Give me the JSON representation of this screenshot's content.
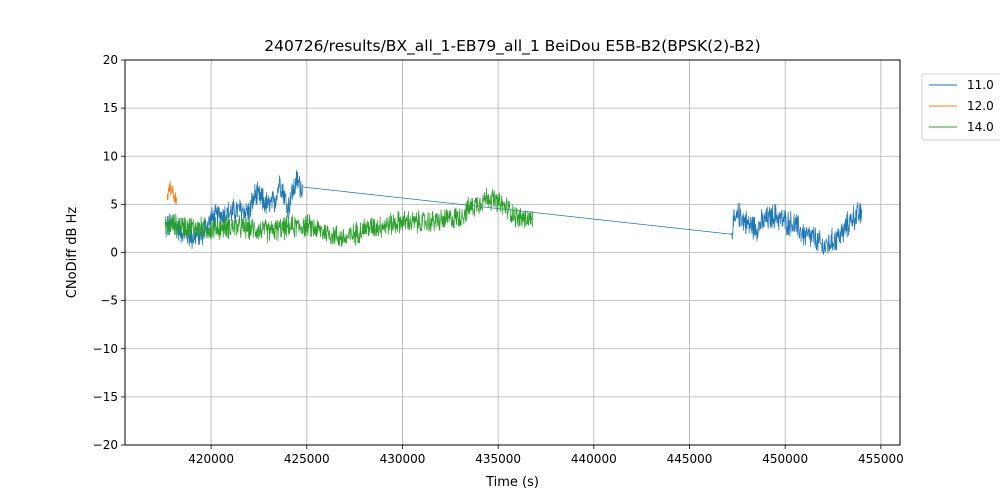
{
  "chart_data": {
    "type": "line",
    "title": "240726/results/BX_all_1-EB79_all_1 BeiDou E5B-B2(BPSK(2)-B2)",
    "xlabel": "Time (s)",
    "ylabel": "CNoDiff dB Hz",
    "xlim": [
      415500,
      456000
    ],
    "ylim": [
      -20,
      20
    ],
    "xticks": [
      420000,
      425000,
      430000,
      435000,
      440000,
      445000,
      450000,
      455000
    ],
    "yticks": [
      -20,
      -15,
      -10,
      -5,
      0,
      5,
      10,
      15,
      20
    ],
    "xtick_labels": [
      "420000",
      "425000",
      "430000",
      "435000",
      "440000",
      "445000",
      "450000",
      "455000"
    ],
    "ytick_labels": [
      "−20",
      "−15",
      "−10",
      "−5",
      "0",
      "5",
      "10",
      "15",
      "20"
    ],
    "grid": true,
    "legend_position": "outside-top-right",
    "series": [
      {
        "name": "11.0",
        "color": "#1f77b4",
        "segments": [
          {
            "x": [
              417600,
              418000,
              418500,
              419000,
              419500,
              420000,
              420500,
              421000,
              421500,
              422000,
              422300,
              422600,
              423000,
              423300,
              423600,
              423800,
              424000,
              424200,
              424500,
              424800
            ],
            "y": [
              2.5,
              3.0,
              2.2,
              1.6,
              1.9,
              3.4,
              3.9,
              4.1,
              4.4,
              4.2,
              6.0,
              5.6,
              4.8,
              5.2,
              7.5,
              6.2,
              4.5,
              6.0,
              7.5,
              6.5
            ],
            "amplitude": 1.6
          },
          {
            "x": [
              424800,
              447200
            ],
            "y": [
              6.8,
              1.9
            ],
            "amplitude": 0
          },
          {
            "x": [
              447200,
              447600,
              448000,
              448500,
              449000,
              449500,
              450000,
              450500,
              451000,
              451500,
              452000,
              452500,
              453000,
              453500,
              454000
            ],
            "y": [
              2.5,
              4.0,
              3.0,
              2.6,
              3.4,
              3.8,
              3.2,
              2.9,
              1.8,
              1.5,
              0.5,
              1.2,
              2.0,
              3.6,
              4.0
            ],
            "amplitude": 1.6
          }
        ]
      },
      {
        "name": "12.0",
        "color": "#ff7f0e",
        "segments": [
          {
            "x": [
              417700,
              417850,
              418000,
              418100,
              418200
            ],
            "y": [
              5.8,
              6.8,
              6.5,
              5.8,
              5.0
            ],
            "amplitude": 0.9
          }
        ]
      },
      {
        "name": "14.0",
        "color": "#2ca02c",
        "segments": [
          {
            "x": [
              417600,
              418000,
              419000,
              420000,
              421000,
              422000,
              423000,
              424000,
              425000,
              426000,
              427000,
              428000,
              429000,
              430000,
              431000,
              432000,
              433000,
              433500,
              434000,
              434500,
              435000,
              435500,
              436000,
              436800
            ],
            "y": [
              2.6,
              2.9,
              2.6,
              2.4,
              2.7,
              2.5,
              2.2,
              2.6,
              2.8,
              2.1,
              1.4,
              2.5,
              2.8,
              3.2,
              3.1,
              3.3,
              3.7,
              4.6,
              5.2,
              5.8,
              5.1,
              4.6,
              3.6,
              3.4
            ],
            "amplitude": 1.4
          }
        ]
      }
    ]
  }
}
